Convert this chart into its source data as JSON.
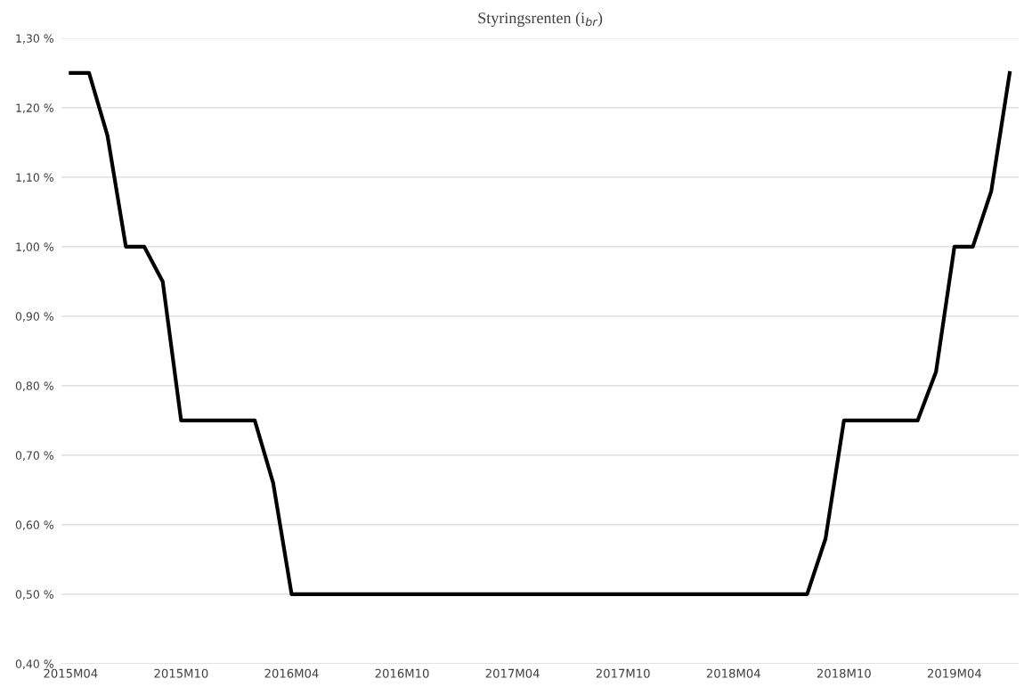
{
  "chart_data": {
    "type": "line",
    "title": "Styringsrenten (i$_{br}$)",
    "categories": [
      "2015M04",
      null,
      null,
      null,
      null,
      null,
      "2015M10",
      null,
      null,
      null,
      null,
      null,
      "2016M04",
      null,
      null,
      null,
      null,
      null,
      "2016M10",
      null,
      null,
      null,
      null,
      null,
      "2017M04",
      null,
      null,
      null,
      null,
      null,
      "2017M10",
      null,
      null,
      null,
      null,
      null,
      "2018M04",
      null,
      null,
      null,
      null,
      null,
      "2018M10",
      null,
      null,
      null,
      null,
      null,
      "2019M04",
      null,
      null,
      null
    ],
    "series": [
      {
        "color": "#000000",
        "values": [
          1.25,
          1.25,
          1.16,
          1.0,
          1.0,
          0.95,
          0.75,
          0.75,
          0.75,
          0.75,
          0.75,
          0.66,
          0.5,
          0.5,
          0.5,
          0.5,
          0.5,
          0.5,
          0.5,
          0.5,
          0.5,
          0.5,
          0.5,
          0.5,
          0.5,
          0.5,
          0.5,
          0.5,
          0.5,
          0.5,
          0.5,
          0.5,
          0.5,
          0.5,
          0.5,
          0.5,
          0.5,
          0.5,
          0.5,
          0.5,
          0.5,
          0.58,
          0.75,
          0.75,
          0.75,
          0.75,
          0.75,
          0.82,
          1.0,
          1.0,
          1.08,
          1.25
        ]
      }
    ],
    "ylim": [
      0.4,
      1.3
    ],
    "yticks": [
      {
        "value": 0.4,
        "label": "0,40 %"
      },
      {
        "value": 0.5,
        "label": "0,50 %"
      },
      {
        "value": 0.6,
        "label": "0,60 %"
      },
      {
        "value": 0.7,
        "label": "0,70 %"
      },
      {
        "value": 0.8,
        "label": "0,80 %"
      },
      {
        "value": 0.9,
        "label": "0,90 %"
      },
      {
        "value": 1.0,
        "label": "1,00 %"
      },
      {
        "value": 1.1,
        "label": "1,10 %"
      },
      {
        "value": 1.2,
        "label": "1,20 %"
      },
      {
        "value": 1.3,
        "label": "1,30 %"
      }
    ],
    "grid": "y",
    "marker": "none",
    "line_style": "solid"
  }
}
